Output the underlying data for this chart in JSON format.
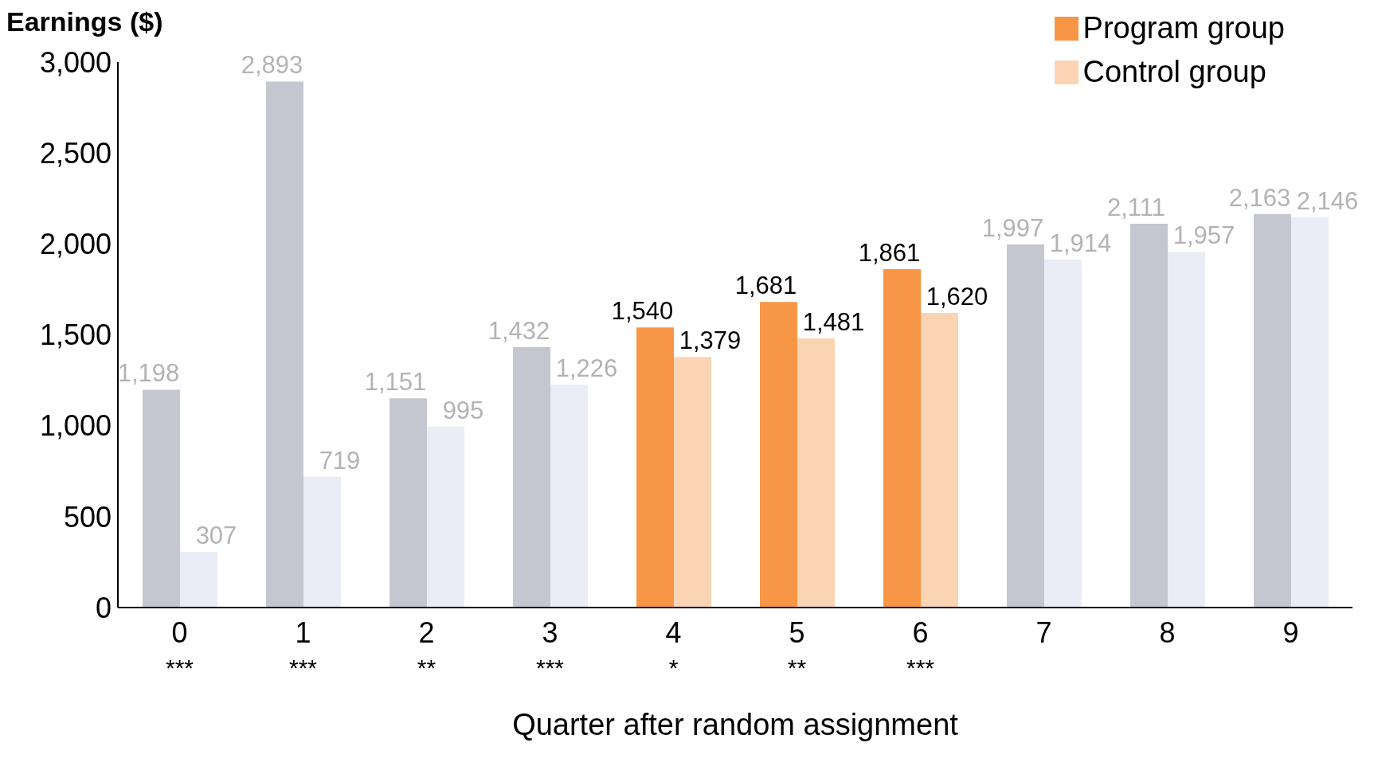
{
  "chart_data": {
    "type": "bar",
    "ylabel": "Earnings ($)",
    "xlabel": "Quarter after random assignment",
    "categories": [
      "0",
      "1",
      "2",
      "3",
      "4",
      "5",
      "6",
      "7",
      "8",
      "9"
    ],
    "series": [
      {
        "name": "Program group",
        "color": "#f79646",
        "colors": [
          "#c4c7cf",
          "#c4c7cf",
          "#c4c7cf",
          "#c4c7cf",
          "#f79646",
          "#f79646",
          "#f79646",
          "#c4c7cf",
          "#c4c7cf",
          "#c4c7cf"
        ],
        "values": [
          1198,
          2893,
          1151,
          1432,
          1540,
          1681,
          1861,
          1997,
          2111,
          2163
        ],
        "value_labels": [
          "1,198",
          "2,893",
          "1,151",
          "1,432",
          "1,540",
          "1,681",
          "1,861",
          "1,997",
          "2,111",
          "2,163"
        ]
      },
      {
        "name": "Control group",
        "color": "#fbd4b4",
        "colors": [
          "#eaedf6",
          "#eaedf6",
          "#eaedf6",
          "#eaedf6",
          "#fbd4b4",
          "#fbd4b4",
          "#fbd4b4",
          "#eaedf6",
          "#eaedf6",
          "#eaedf6"
        ],
        "values": [
          307,
          719,
          995,
          1226,
          1379,
          1481,
          1620,
          1914,
          1957,
          2146
        ],
        "value_labels": [
          "307",
          "719",
          "995",
          "1,226",
          "1,379",
          "1,481",
          "1,620",
          "1,914",
          "1,957",
          "2,146"
        ]
      }
    ],
    "ylim": [
      0,
      3000
    ],
    "yticks": [
      0,
      500,
      {
        "value": 1000,
        "label": "1,000"
      },
      {
        "value": 1500,
        "label": "1,500"
      },
      {
        "value": 2000,
        "label": "2,000"
      },
      {
        "value": 2500,
        "label": "2,500"
      },
      {
        "value": 3000,
        "label": "3,000"
      }
    ],
    "grid": false,
    "legend": "top right",
    "annotations": [
      "***",
      "***",
      "**",
      "***",
      "*",
      "**",
      "***"
    ]
  }
}
